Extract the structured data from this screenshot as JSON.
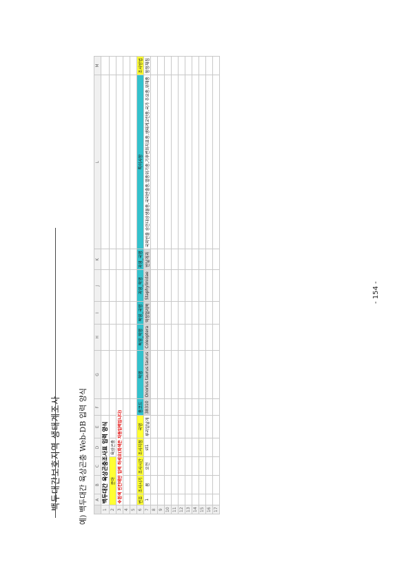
{
  "header": {
    "title": "백두대간보호지역 생태계조사"
  },
  "section": {
    "heading": "예) 백두대간 육상곤충 Web-DB 입력 양식"
  },
  "page": {
    "number": "- 154 -"
  },
  "sheet": {
    "col_letters": [
      "A",
      "B",
      "C",
      "D",
      "E",
      "F",
      "G",
      "H",
      "I",
      "J",
      "K",
      "L",
      "M"
    ],
    "title": "백두대간 육상곤충조사표 입력 양식",
    "field_label": "분야",
    "field_value": "육상곤충",
    "note": "※흰색 빈칸에만 입력 하세요(회색은 자동입력입니다)",
    "headers": [
      "번호",
      "조사시기",
      "조사시간",
      "조사지점",
      "국명",
      "종코드",
      "학명",
      "목영_학명",
      "목영_국명",
      "과영_학명",
      "과영_국명",
      "특이사항",
      "조사방법"
    ],
    "row7": [
      "1",
      "봄",
      "오전",
      "st1",
      "루리알날개",
      "38310",
      "Onorius taurus taurus",
      "Coleoptera",
      "딱정벌레목",
      "Staphylinidae",
      "반날개과",
      "국외반출 승인대상생물종,국외반출종,멸종위기종,기후변화지표종,생태계교란종,국가 주요종,위해종",
      "함정채집"
    ],
    "row_numbers": [
      "1",
      "2",
      "3",
      "4",
      "5",
      "6",
      "7",
      "8",
      "9",
      "10",
      "11",
      "12",
      "13",
      "14",
      "15",
      "16",
      "17"
    ]
  }
}
